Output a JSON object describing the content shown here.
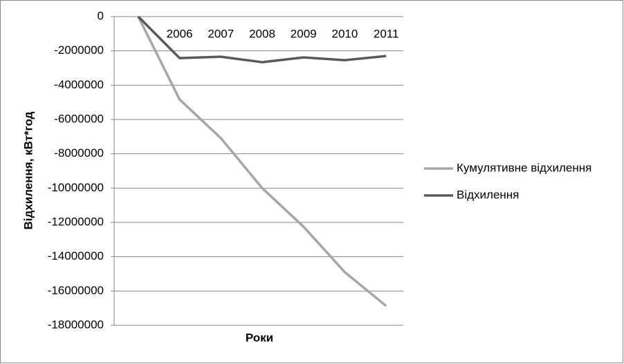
{
  "chart_data": {
    "type": "line",
    "y_label": "Відхилення, кВт*год",
    "x_label": "Роки",
    "categories": [
      null,
      "2006",
      "2007",
      "2008",
      "2009",
      "2010",
      "2011"
    ],
    "series": [
      {
        "name": "Кумулятивне відхилення",
        "color": "#a6a6a6",
        "values": [
          0,
          -4830000,
          -7090000,
          -10000000,
          -12250000,
          -14900000,
          -16870000
        ]
      },
      {
        "name": "Відхилення",
        "color": "#595959",
        "values": [
          0,
          -2420000,
          -2340000,
          -2660000,
          -2380000,
          -2540000,
          -2300000
        ]
      }
    ],
    "ylim": [
      -18000000,
      0
    ],
    "yticks": [
      0,
      -2000000,
      -4000000,
      -6000000,
      -8000000,
      -10000000,
      -12000000,
      -14000000,
      -16000000,
      -18000000
    ],
    "grid": true,
    "legend": "right"
  }
}
